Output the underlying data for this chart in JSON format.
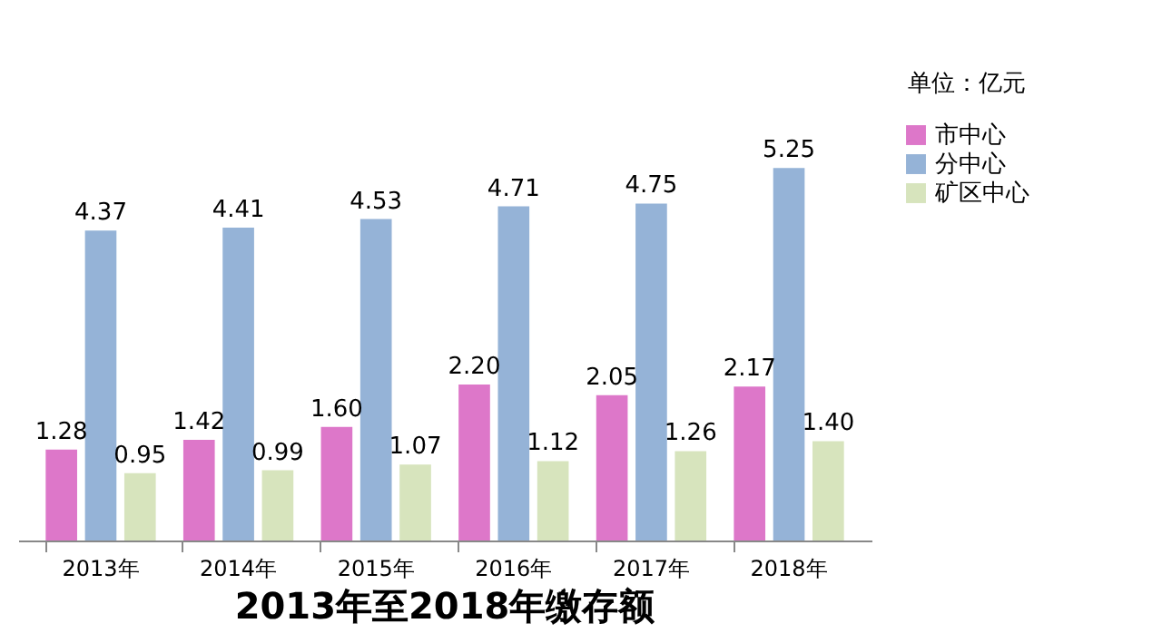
{
  "chart_data": {
    "type": "bar",
    "title": "2013年至2018年缴存额",
    "annotations": [
      "单位：亿元"
    ],
    "categories": [
      "2013年",
      "2014年",
      "2015年",
      "2016年",
      "2017年",
      "2018年"
    ],
    "series": [
      {
        "name": "市中心",
        "color": "#dd77c9",
        "values": [
          1.28,
          1.42,
          1.6,
          2.2,
          2.05,
          2.17
        ],
        "value_labels": [
          "1.28",
          "1.42",
          "1.60",
          "2.20",
          "2.05",
          "2.17"
        ]
      },
      {
        "name": "分中心",
        "color": "#95b3d7",
        "values": [
          4.37,
          4.41,
          4.53,
          4.71,
          4.75,
          5.25
        ],
        "value_labels": [
          "4.37",
          "4.41",
          "4.53",
          "4.71",
          "4.75",
          "5.25"
        ]
      },
      {
        "name": "矿区中心",
        "color": "#d7e4bd",
        "values": [
          0.95,
          0.99,
          1.07,
          1.12,
          1.26,
          1.4
        ],
        "value_labels": [
          "0.95",
          "0.99",
          "1.07",
          "1.12",
          "1.26",
          "1.40"
        ]
      }
    ],
    "grid": false,
    "legend": "right"
  }
}
